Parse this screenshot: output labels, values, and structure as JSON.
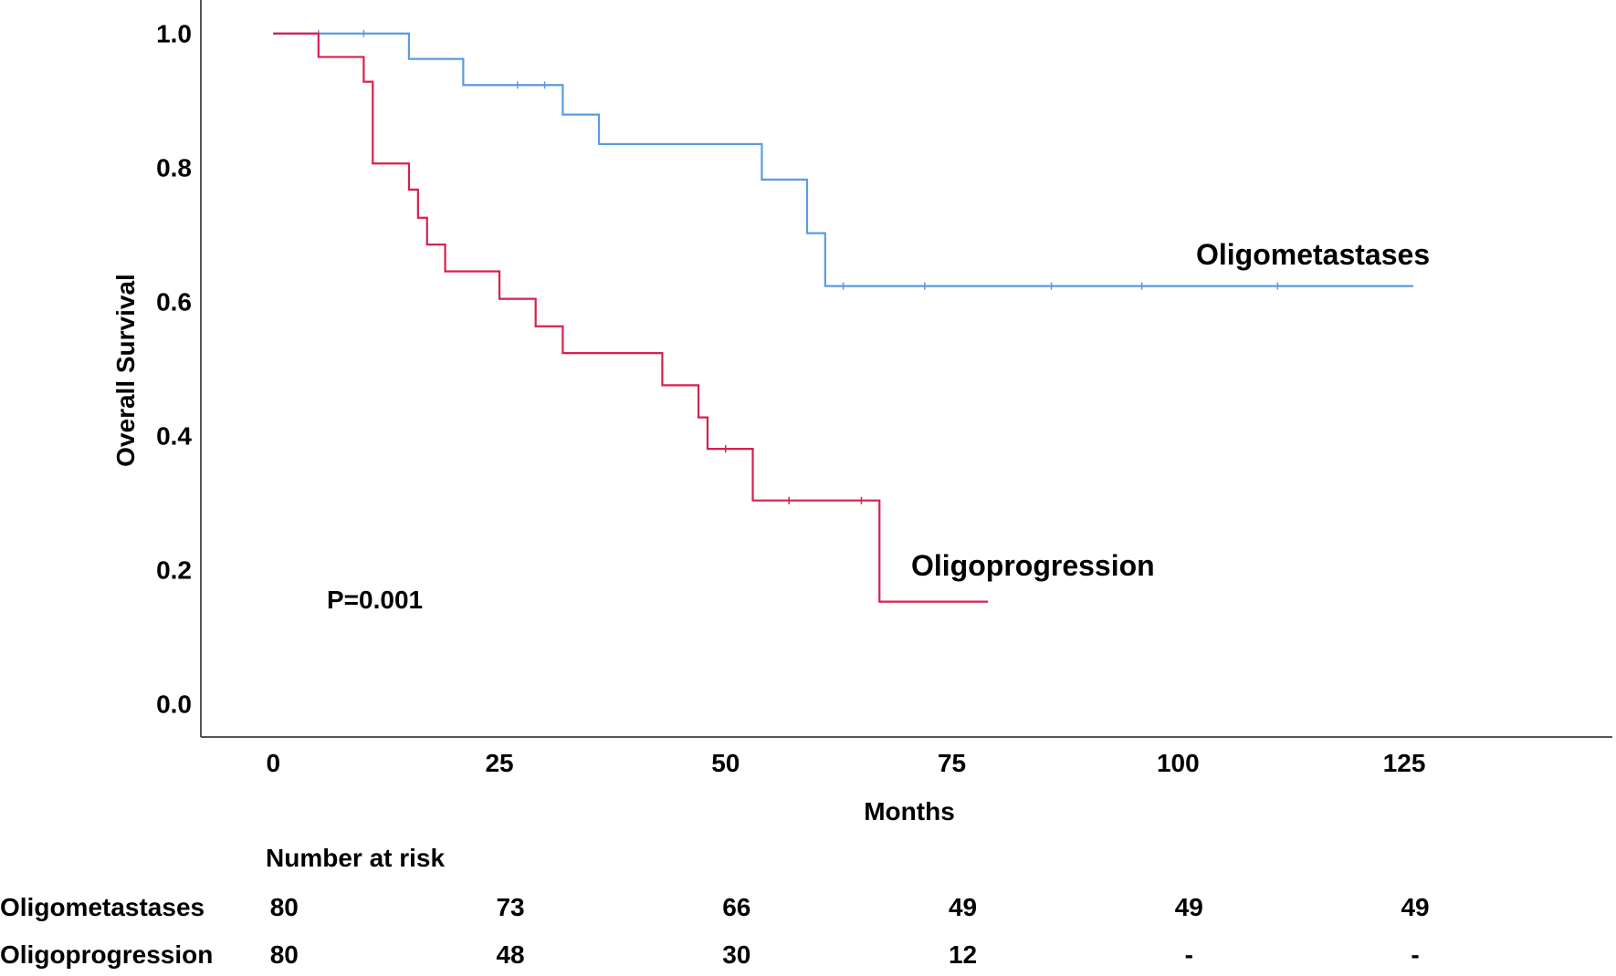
{
  "chart_data": {
    "type": "line",
    "subtype": "kaplan-meier",
    "title": "",
    "xlabel": "Months",
    "ylabel": "Overall Survival",
    "xlim": [
      -8,
      148
    ],
    "ylim": [
      -0.05,
      1.05
    ],
    "xticks": [
      0,
      25,
      50,
      75,
      100,
      125
    ],
    "yticks": [
      0.0,
      0.2,
      0.4,
      0.6,
      0.8,
      1.0
    ],
    "ytick_labels": [
      "0.0",
      "0.2",
      "0.4",
      "0.6",
      "0.8",
      "1.0"
    ],
    "grid": false,
    "annotation": "P=0.001",
    "series": [
      {
        "name": "Oligometastases",
        "color": "#5b9be0",
        "x": [
          0,
          15,
          21,
          32,
          36,
          54,
          59,
          61,
          126
        ],
        "y": [
          1.0,
          0.962,
          0.923,
          0.879,
          0.835,
          0.782,
          0.702,
          0.623,
          0.623
        ],
        "censor_x": [
          5,
          10,
          27,
          30,
          63,
          72,
          86,
          96,
          111
        ],
        "censor_y": [
          1.0,
          1.0,
          0.923,
          0.923,
          0.623,
          0.623,
          0.623,
          0.623,
          0.623
        ]
      },
      {
        "name": "Oligoprogression",
        "color": "#d6204e",
        "x": [
          0,
          5,
          10,
          11,
          15,
          16,
          17,
          19,
          25,
          29,
          32,
          43,
          47,
          48,
          53,
          67,
          79
        ],
        "y": [
          1.0,
          0.965,
          0.928,
          0.806,
          0.767,
          0.725,
          0.685,
          0.645,
          0.604,
          0.563,
          0.523,
          0.475,
          0.427,
          0.38,
          0.303,
          0.152,
          0.152
        ],
        "censor_x": [
          50,
          57,
          65
        ],
        "censor_y": [
          0.38,
          0.303,
          0.303
        ]
      }
    ],
    "risk_table": {
      "title": "Number at risk",
      "time_points": [
        0,
        25,
        50,
        75,
        100,
        125
      ],
      "rows": [
        {
          "label": "Oligometastases",
          "values": [
            "80",
            "73",
            "66",
            "49",
            "49",
            "49"
          ]
        },
        {
          "label": "Oligoprogression",
          "values": [
            "80",
            "48",
            "30",
            "12",
            "-",
            "-"
          ]
        }
      ]
    }
  }
}
